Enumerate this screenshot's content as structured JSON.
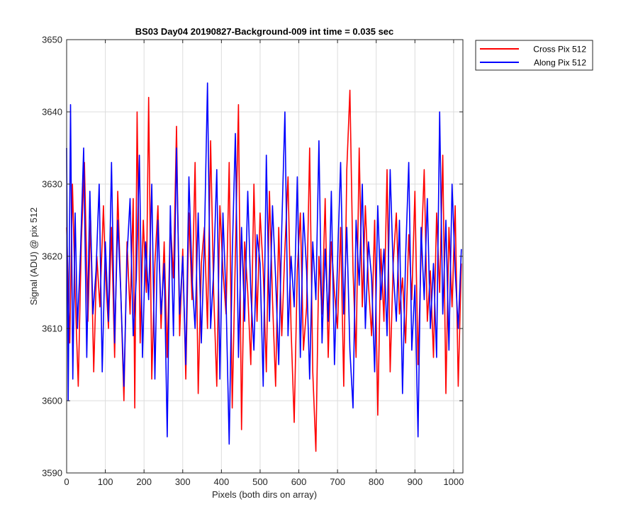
{
  "chart_data": {
    "type": "line",
    "title": "BS03 Day04 20190827-Background-009 int time = 0.035 sec",
    "xlabel": "Pixels (both dirs on array)",
    "ylabel": "Signal (ADU) @ pix 512",
    "xlim": [
      0,
      1024
    ],
    "ylim": [
      3590,
      3650
    ],
    "xticks": [
      0,
      100,
      200,
      300,
      400,
      500,
      600,
      700,
      800,
      900,
      1000
    ],
    "yticks": [
      3590,
      3600,
      3610,
      3620,
      3630,
      3640,
      3650
    ],
    "grid": true,
    "legend_position": "outside-top-right",
    "series": [
      {
        "name": "Cross Pix 512",
        "color": "#ff0000",
        "x": [
          0,
          8,
          15,
          22,
          30,
          38,
          46,
          55,
          62,
          70,
          78,
          86,
          95,
          100,
          108,
          116,
          124,
          132,
          140,
          148,
          156,
          164,
          172,
          176,
          182,
          190,
          198,
          206,
          212,
          220,
          228,
          236,
          244,
          252,
          260,
          268,
          276,
          284,
          292,
          300,
          308,
          316,
          324,
          332,
          340,
          348,
          356,
          364,
          372,
          380,
          388,
          396,
          404,
          412,
          420,
          428,
          436,
          444,
          452,
          460,
          468,
          476,
          484,
          492,
          500,
          508,
          516,
          524,
          532,
          540,
          548,
          556,
          564,
          572,
          580,
          588,
          596,
          604,
          612,
          620,
          628,
          636,
          644,
          652,
          660,
          668,
          676,
          684,
          692,
          700,
          708,
          716,
          724,
          732,
          740,
          748,
          756,
          764,
          772,
          780,
          788,
          796,
          804,
          812,
          820,
          828,
          836,
          844,
          852,
          860,
          868,
          876,
          884,
          892,
          900,
          908,
          916,
          924,
          932,
          940,
          948,
          956,
          964,
          972,
          980,
          988,
          996,
          1004,
          1012,
          1020
        ],
        "y": [
          3624,
          3608,
          3630,
          3615,
          3602,
          3622,
          3633,
          3611,
          3625,
          3604,
          3620,
          3613,
          3627,
          3618,
          3610,
          3624,
          3606,
          3629,
          3615,
          3600,
          3622,
          3612,
          3628,
          3599,
          3640,
          3608,
          3625,
          3615,
          3642,
          3603,
          3619,
          3627,
          3610,
          3622,
          3606,
          3625,
          3617,
          3638,
          3609,
          3621,
          3603,
          3626,
          3614,
          3633,
          3601,
          3619,
          3624,
          3610,
          3636,
          3615,
          3602,
          3627,
          3618,
          3612,
          3633,
          3599,
          3620,
          3641,
          3596,
          3622,
          3615,
          3605,
          3630,
          3611,
          3626,
          3618,
          3604,
          3629,
          3614,
          3602,
          3624,
          3609,
          3621,
          3631,
          3610,
          3597,
          3618,
          3626,
          3607,
          3613,
          3635,
          3604,
          3593,
          3620,
          3612,
          3628,
          3606,
          3622,
          3615,
          3610,
          3624,
          3602,
          3632,
          3643,
          3618,
          3606,
          3635,
          3613,
          3627,
          3616,
          3609,
          3625,
          3598,
          3621,
          3611,
          3632,
          3604,
          3619,
          3626,
          3612,
          3617,
          3608,
          3623,
          3614,
          3629,
          3605,
          3620,
          3632,
          3611,
          3618,
          3606,
          3626,
          3615,
          3634,
          3601,
          3624,
          3613,
          3627,
          3602,
          3619
        ]
      },
      {
        "name": "Along Pix 512",
        "color": "#0000ff",
        "x": [
          0,
          4,
          10,
          16,
          22,
          28,
          36,
          44,
          52,
          60,
          68,
          76,
          84,
          92,
          100,
          108,
          116,
          124,
          132,
          140,
          148,
          156,
          164,
          172,
          180,
          188,
          196,
          204,
          212,
          220,
          228,
          236,
          244,
          252,
          260,
          268,
          276,
          284,
          292,
          300,
          308,
          316,
          324,
          332,
          340,
          348,
          356,
          364,
          372,
          380,
          388,
          396,
          404,
          412,
          420,
          428,
          436,
          444,
          452,
          460,
          468,
          476,
          484,
          492,
          500,
          508,
          516,
          524,
          532,
          540,
          548,
          556,
          564,
          572,
          580,
          588,
          596,
          604,
          612,
          620,
          628,
          636,
          644,
          652,
          660,
          668,
          676,
          684,
          692,
          700,
          708,
          716,
          724,
          732,
          740,
          748,
          756,
          764,
          772,
          780,
          788,
          796,
          804,
          812,
          820,
          828,
          836,
          844,
          852,
          860,
          868,
          876,
          884,
          892,
          900,
          908,
          916,
          924,
          932,
          940,
          948,
          956,
          964,
          972,
          980,
          988,
          996,
          1004,
          1012,
          1020
        ],
        "y": [
          3635,
          3600,
          3641,
          3603,
          3626,
          3610,
          3621,
          3635,
          3606,
          3629,
          3612,
          3618,
          3630,
          3604,
          3622,
          3611,
          3633,
          3608,
          3625,
          3615,
          3602,
          3620,
          3628,
          3609,
          3617,
          3634,
          3606,
          3622,
          3614,
          3630,
          3603,
          3625,
          3612,
          3619,
          3595,
          3627,
          3609,
          3635,
          3612,
          3620,
          3605,
          3631,
          3617,
          3610,
          3626,
          3608,
          3622,
          3644,
          3610,
          3618,
          3632,
          3603,
          3626,
          3614,
          3594,
          3620,
          3637,
          3606,
          3624,
          3611,
          3629,
          3615,
          3607,
          3623,
          3619,
          3602,
          3634,
          3611,
          3627,
          3617,
          3605,
          3624,
          3640,
          3609,
          3620,
          3613,
          3631,
          3606,
          3626,
          3618,
          3603,
          3622,
          3614,
          3636,
          3608,
          3621,
          3611,
          3629,
          3605,
          3619,
          3633,
          3612,
          3624,
          3607,
          3599,
          3625,
          3616,
          3630,
          3610,
          3622,
          3617,
          3604,
          3627,
          3614,
          3621,
          3609,
          3632,
          3618,
          3611,
          3625,
          3601,
          3620,
          3633,
          3607,
          3616,
          3595,
          3624,
          3614,
          3628,
          3610,
          3619,
          3606,
          3640,
          3612,
          3625,
          3607,
          3630,
          3618,
          3610,
          3621
        ]
      }
    ]
  }
}
